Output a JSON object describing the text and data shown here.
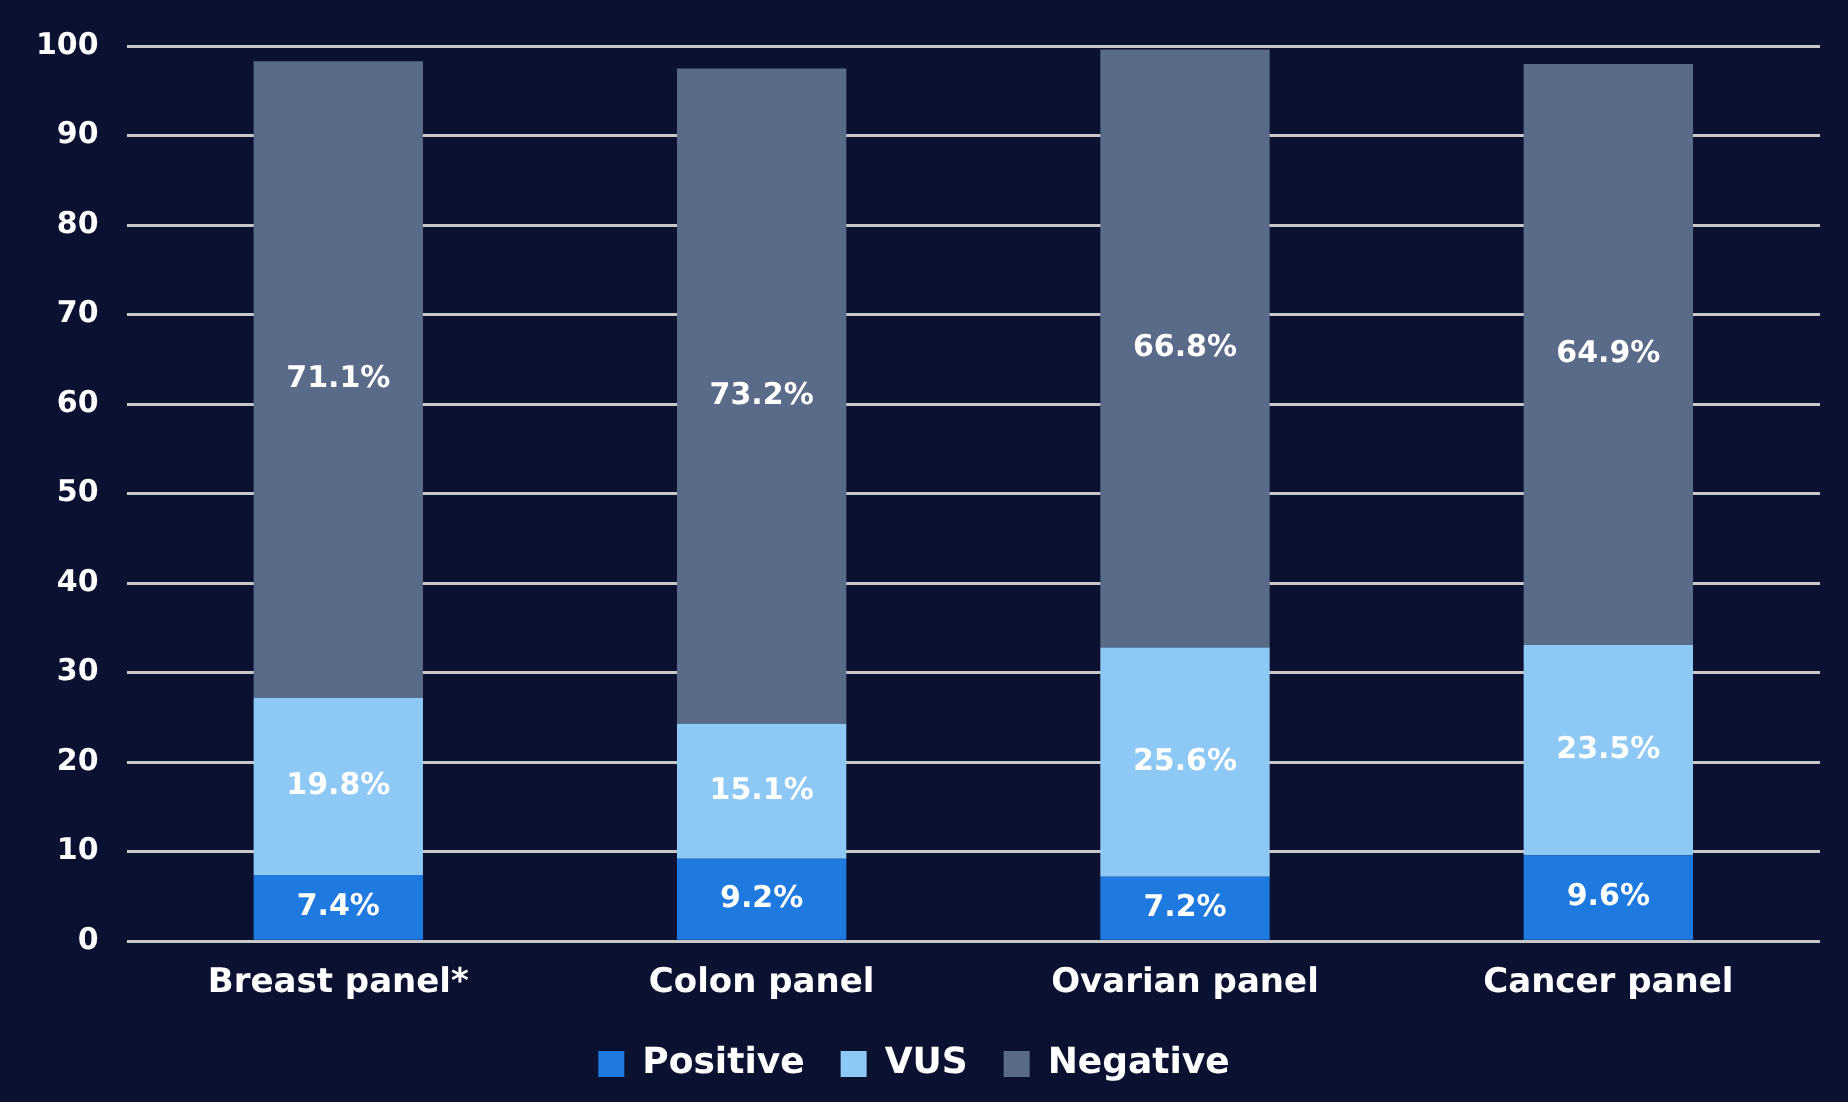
{
  "chart_data": {
    "type": "bar",
    "stacked": true,
    "categories": [
      "Breast panel*",
      "Colon panel",
      "Ovarian panel",
      "Cancer panel"
    ],
    "series": [
      {
        "name": "Positive",
        "color": "#1f7ae0",
        "values": [
          7.4,
          9.2,
          7.2,
          9.6
        ],
        "value_labels": [
          "7.4%",
          "9.2%",
          "7.2%",
          "9.6%"
        ]
      },
      {
        "name": "VUS",
        "color": "#8ec8f5",
        "values": [
          19.8,
          15.1,
          25.6,
          23.5
        ],
        "value_labels": [
          "19.8%",
          "15.1%",
          "25.6%",
          "23.5%"
        ]
      },
      {
        "name": "Negative",
        "color": "#5a6b8a",
        "values": [
          71.1,
          73.2,
          66.8,
          64.9
        ],
        "value_labels": [
          "71.1%",
          "73.2%",
          "66.8%",
          "64.9%"
        ]
      }
    ],
    "ylim": [
      0,
      100
    ],
    "yticks": [
      0,
      10,
      20,
      30,
      40,
      50,
      60,
      70,
      80,
      90,
      100
    ],
    "grid": "y",
    "legend": "bottom"
  }
}
